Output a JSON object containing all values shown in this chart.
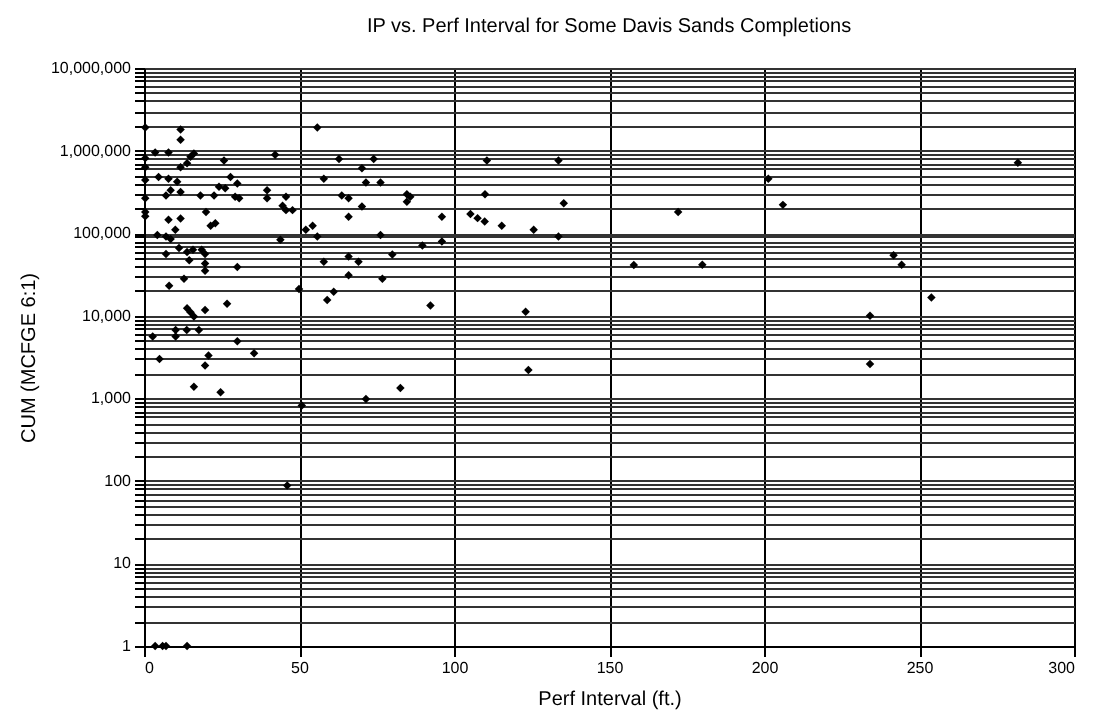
{
  "chart_data": {
    "type": "scatter",
    "title": "IP vs. Perf Interval for Some Davis Sands Completions",
    "xlabel": "Perf Interval (ft.)",
    "ylabel": "CUM (MCFGE 6:1)",
    "x": [
      0.4,
      11.8,
      11.8,
      55.9,
      0.4,
      3.6,
      7.9,
      0.4,
      4.7,
      0.4,
      7.9,
      10.7,
      11.8,
      13.9,
      15.0,
      16.1,
      25.8,
      42.3,
      8.6,
      11.8,
      7.1,
      0.4,
      18.2,
      22.6,
      24.2,
      26.2,
      27.9,
      30.1,
      29.4,
      30.7,
      39.7,
      39.7,
      45.8,
      44.7,
      45.8,
      47.9,
      0.4,
      0.4,
      7.9,
      11.8,
      20.0,
      21.5,
      23.0,
      52.2,
      54.4,
      55.9,
      4.3,
      7.1,
      8.6,
      10.1,
      7.1,
      11.3,
      13.9,
      15.8,
      18.6,
      14.6,
      19.7,
      19.7,
      19.7,
      44.0,
      30.1,
      12.9,
      8.1,
      50.0,
      61.2,
      59.1,
      13.9,
      15.0,
      16.1,
      19.7,
      26.8,
      2.8,
      10.2,
      10.2,
      13.8,
      17.7,
      30.1,
      35.5,
      20.8,
      5.0,
      19.7,
      16.1,
      24.7,
      50.9,
      46.2,
      3.6,
      6.0,
      7.1,
      13.9,
      62.9,
      74.1,
      70.3,
      58.0,
      71.6,
      76.3,
      63.8,
      66.0,
      84.8,
      85.9,
      84.8,
      70.3,
      66.0,
      96.1,
      110.6,
      133.7,
      110.0,
      135.4,
      105.3,
      107.6,
      109.9,
      115.4,
      125.7,
      133.7,
      76.3,
      89.8,
      96.1,
      80.1,
      58.0,
      66.0,
      69.2,
      66.0,
      76.9,
      92.4,
      123.1,
      124.0,
      82.7,
      71.6,
      158.0,
      172.3,
      180.1,
      201.4,
      206.1,
      241.8,
      244.4,
      254.0,
      234.2,
      234.2,
      281.9
    ],
    "series": [
      {
        "color": "#000000",
        "values": [
          1900000,
          1800000,
          1350000,
          1900000,
          810000,
          950000,
          950000,
          630000,
          480000,
          440000,
          455000,
          420000,
          630000,
          700000,
          840000,
          920000,
          760000,
          890000,
          330000,
          315000,
          285000,
          265000,
          285000,
          285000,
          365000,
          350000,
          480000,
          400000,
          275000,
          265000,
          330000,
          265000,
          275000,
          215000,
          190000,
          190000,
          180000,
          160000,
          145000,
          150000,
          180000,
          123000,
          132000,
          110000,
          123000,
          91000,
          95000,
          91000,
          85000,
          110000,
          56000,
          66000,
          59000,
          63000,
          63000,
          47000,
          56000,
          43000,
          35000,
          83000,
          39000,
          28000,
          23000,
          21000,
          19500,
          15500,
          12300,
          11000,
          9800,
          11700,
          14000,
          5600,
          6700,
          5600,
          6700,
          6700,
          4900,
          3500,
          3300,
          3000,
          2500,
          1380,
          1180,
          820,
          88,
          1,
          1,
          1,
          1,
          790000,
          790000,
          610000,
          455000,
          410000,
          410000,
          285000,
          265000,
          295000,
          275000,
          240000,
          210000,
          158000,
          158000,
          760000,
          760000,
          295000,
          230000,
          170000,
          152000,
          138000,
          123000,
          110000,
          91000,
          95000,
          71000,
          79000,
          55000,
          45000,
          52000,
          45000,
          31000,
          28000,
          13300,
          11200,
          2200,
          1330,
          980,
          41000,
          180000,
          41500,
          455000,
          220000,
          54000,
          41500,
          16600,
          10000,
          2600,
          710000
        ]
      }
    ],
    "xlim": [
      0,
      300
    ],
    "xticks": [
      0,
      50,
      100,
      150,
      200,
      250,
      300
    ],
    "ylim": [
      1,
      10000000
    ],
    "log": "y",
    "yticks": [
      {
        "value": 1,
        "label": "1"
      },
      {
        "value": 2,
        "label": null
      },
      {
        "value": 3,
        "label": null
      },
      {
        "value": 4,
        "label": null
      },
      {
        "value": 5,
        "label": null
      },
      {
        "value": 6,
        "label": null
      },
      {
        "value": 7,
        "label": null
      },
      {
        "value": 8,
        "label": null
      },
      {
        "value": 9,
        "label": null
      },
      {
        "value": 10,
        "label": "10"
      },
      {
        "value": 20,
        "label": null
      },
      {
        "value": 30,
        "label": null
      },
      {
        "value": 40,
        "label": null
      },
      {
        "value": 50,
        "label": null
      },
      {
        "value": 60,
        "label": null
      },
      {
        "value": 70,
        "label": null
      },
      {
        "value": 80,
        "label": null
      },
      {
        "value": 90,
        "label": null
      },
      {
        "value": 100,
        "label": "100"
      },
      {
        "value": 200,
        "label": null
      },
      {
        "value": 300,
        "label": null
      },
      {
        "value": 400,
        "label": null
      },
      {
        "value": 500,
        "label": null
      },
      {
        "value": 600,
        "label": null
      },
      {
        "value": 700,
        "label": null
      },
      {
        "value": 800,
        "label": null
      },
      {
        "value": 900,
        "label": null
      },
      {
        "value": 1000,
        "label": "1,000"
      },
      {
        "value": 2000,
        "label": null
      },
      {
        "value": 3000,
        "label": null
      },
      {
        "value": 4000,
        "label": null
      },
      {
        "value": 5000,
        "label": null
      },
      {
        "value": 6000,
        "label": null
      },
      {
        "value": 7000,
        "label": null
      },
      {
        "value": 8000,
        "label": null
      },
      {
        "value": 9000,
        "label": null
      },
      {
        "value": 10000,
        "label": "10,000"
      },
      {
        "value": 20000,
        "label": null
      },
      {
        "value": 30000,
        "label": null
      },
      {
        "value": 40000,
        "label": null
      },
      {
        "value": 50000,
        "label": null
      },
      {
        "value": 60000,
        "label": null
      },
      {
        "value": 70000,
        "label": null
      },
      {
        "value": 80000,
        "label": null
      },
      {
        "value": 90000,
        "label": null
      },
      {
        "value": 100000,
        "label": "100,000"
      },
      {
        "value": 200000,
        "label": null
      },
      {
        "value": 300000,
        "label": null
      },
      {
        "value": 400000,
        "label": null
      },
      {
        "value": 500000,
        "label": null
      },
      {
        "value": 600000,
        "label": null
      },
      {
        "value": 700000,
        "label": null
      },
      {
        "value": 800000,
        "label": null
      },
      {
        "value": 900000,
        "label": null
      },
      {
        "value": 1000000,
        "label": "1,000,000"
      },
      {
        "value": 2000000,
        "label": null
      },
      {
        "value": 3000000,
        "label": null
      },
      {
        "value": 4000000,
        "label": null
      },
      {
        "value": 5000000,
        "label": null
      },
      {
        "value": 6000000,
        "label": null
      },
      {
        "value": 7000000,
        "label": null
      },
      {
        "value": 8000000,
        "label": null
      },
      {
        "value": 9000000,
        "label": null
      },
      {
        "value": 10000000,
        "label": "10,000,000"
      }
    ],
    "grid": true,
    "marker": "diamond"
  }
}
